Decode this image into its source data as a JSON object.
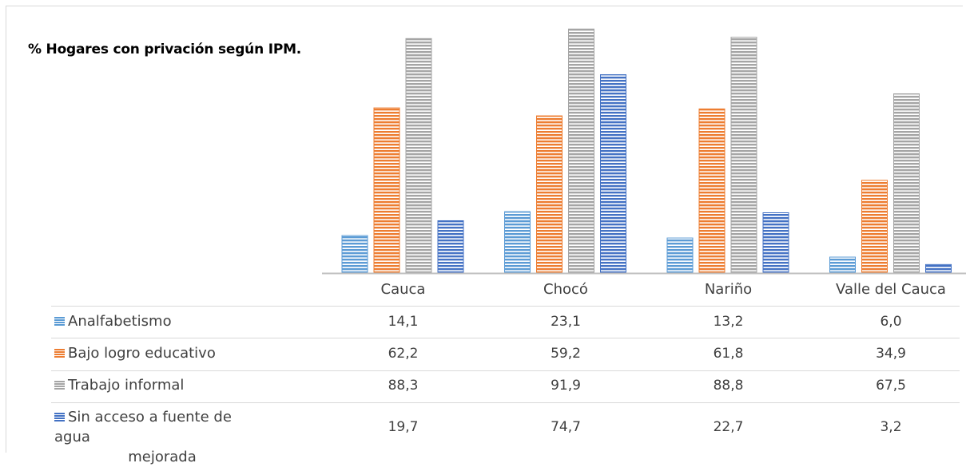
{
  "title": "% Hogares con privación según IPM.",
  "chart_data": {
    "type": "bar",
    "categories": [
      "Cauca",
      "Chocó",
      "Nariño",
      "Valle del Cauca"
    ],
    "series": [
      {
        "name": "Analfabetismo",
        "color": "#5b9bd5",
        "values": [
          14.1,
          23.1,
          13.2,
          6.0
        ],
        "labels": [
          "14,1",
          "23,1",
          "13,2",
          "6,0"
        ]
      },
      {
        "name": "Bajo logro educativo",
        "color": "#ed7d31",
        "values": [
          62.2,
          59.2,
          61.8,
          34.9
        ],
        "labels": [
          "62,2",
          "59,2",
          "61,8",
          "34,9"
        ]
      },
      {
        "name": "Trabajo informal",
        "color": "#a5a5a5",
        "values": [
          88.3,
          91.9,
          88.8,
          67.5
        ],
        "labels": [
          "88,3",
          "91,9",
          "88,8",
          "67,5"
        ]
      },
      {
        "name": "Sin acceso a fuente de agua mejorada",
        "color": "#4472c4",
        "values": [
          19.7,
          74.7,
          22.7,
          3.2
        ],
        "labels": [
          "19,7",
          "74,7",
          "22,7",
          "3,2"
        ]
      }
    ],
    "ylim": [
      0,
      92
    ],
    "fill_pattern": "horizontal-stripes",
    "grid": false,
    "legend": "data-table",
    "series_label_lines": [
      [
        "Analfabetismo"
      ],
      [
        "Bajo logro educativo"
      ],
      [
        "Trabajo informal"
      ],
      [
        "Sin acceso a fuente de agua",
        "mejorada"
      ]
    ]
  }
}
